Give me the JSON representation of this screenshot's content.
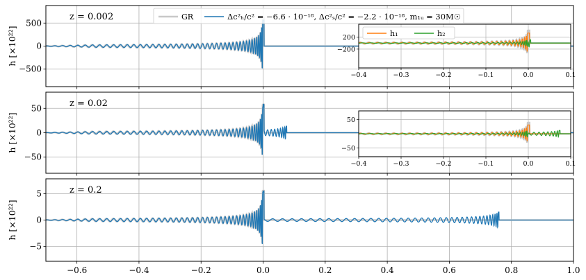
{
  "chart_data": {
    "type": "line",
    "xlim": [
      -0.7,
      1.0
    ],
    "x_ticks": [
      -0.6,
      -0.4,
      -0.2,
      0.0,
      0.2,
      0.4,
      0.6,
      0.8,
      1.0
    ],
    "x_tick_labels": [
      "−0.6",
      "−0.4",
      "−0.2",
      "0.0",
      "0.2",
      "0.4",
      "0.6",
      "0.8",
      "1.0"
    ],
    "grid": true,
    "colors": {
      "gr": "#c8c8c8",
      "mod": "#1f77b4",
      "h1": "#ff7f0e",
      "h2": "#2ca02c"
    },
    "legend": {
      "entries": [
        {
          "key": "gr",
          "label": "GR"
        },
        {
          "key": "mod",
          "label": "Δc²ₕ/c² = −6.6 · 10⁻¹⁸, Δc²ₛ/c² = −2.2 · 10⁻¹⁸, m₁ᵤ = 30M☉"
        }
      ],
      "placement": "top-center"
    },
    "panels": [
      {
        "annotation": "z = 0.002",
        "ylabel": "h [×10²²]",
        "ylim": [
          -880,
          880
        ],
        "y_ticks": [
          -500,
          0,
          500
        ],
        "y_tick_labels": [
          "−500",
          "0",
          "500"
        ],
        "gr_peak": 820,
        "modified": {
          "peak": 770,
          "echo_end": 0.0,
          "echo_amp": 0
        },
        "inset": {
          "xlim": [
            -0.4,
            0.1
          ],
          "x_ticks": [
            -0.4,
            -0.3,
            -0.2,
            -0.1,
            0.0,
            0.1
          ],
          "x_tick_labels": [
            "−0.4",
            "−0.3",
            "−0.2",
            "−0.1",
            "0.0",
            "0.1"
          ],
          "ylim": [
            -820,
            620
          ],
          "y_ticks": [
            200,
            -200
          ],
          "y_tick_labels": [
            "200",
            "−200"
          ],
          "legend": [
            "h₁",
            "h₂"
          ],
          "h1_peak": 450,
          "h2_peak": 170,
          "h2_tail_end": 0.006
        }
      },
      {
        "annotation": "z = 0.02",
        "ylabel": "h [×10²²]",
        "ylim": [
          -83,
          83
        ],
        "y_ticks": [
          -50,
          0,
          50
        ],
        "y_tick_labels": [
          "−50",
          "0",
          "50"
        ],
        "gr_peak": 78,
        "modified": {
          "peak": 72,
          "echo_end": 0.076,
          "echo_amp": 15
        },
        "inset": {
          "xlim": [
            -0.4,
            0.1
          ],
          "x_ticks": [
            -0.4,
            -0.3,
            -0.2,
            -0.1,
            0.0,
            0.1
          ],
          "x_tick_labels": [
            "−0.4",
            "−0.3",
            "−0.2",
            "−0.1",
            "0.0",
            "0.1"
          ],
          "ylim": [
            -80,
            80
          ],
          "y_ticks": [
            50,
            -50
          ],
          "y_tick_labels": [
            "50",
            "−50"
          ],
          "h1_peak": 42,
          "h2_peak": 18,
          "h2_tail_end": 0.075
        }
      },
      {
        "annotation": "z = 0.2",
        "ylabel": "h [×10²²]",
        "ylim": [
          -7.8,
          7.8
        ],
        "y_ticks": [
          -5,
          0,
          5
        ],
        "y_tick_labels": [
          "−5",
          "0",
          "5"
        ],
        "gr_peak": 7.5,
        "modified": {
          "peak": 7.2,
          "echo_end": 0.76,
          "echo_amp": 1.7
        }
      }
    ]
  }
}
